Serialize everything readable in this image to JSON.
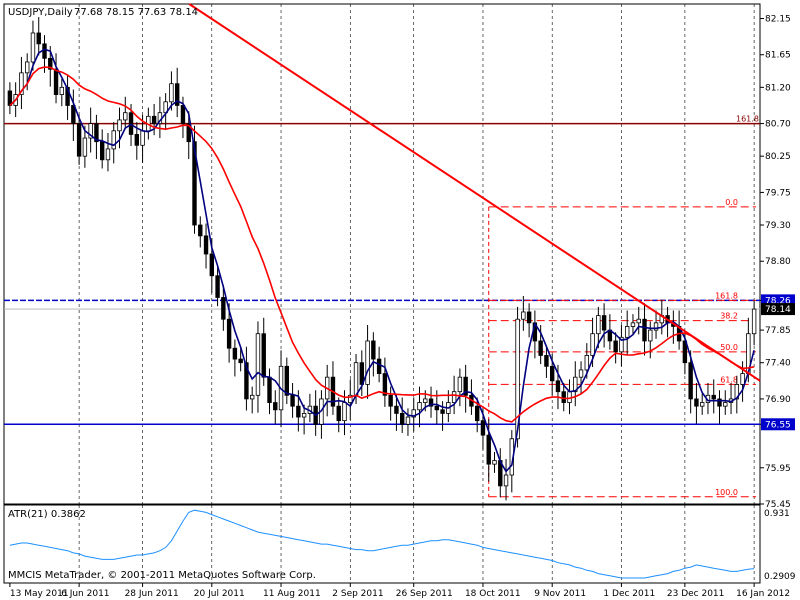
{
  "header": {
    "symbol_label": "USDJPY,Daily",
    "ohlc": "77.68 78.15 77.63 78.14"
  },
  "indicator": {
    "label": "ATR(21) 0.3862",
    "top_value": "0.931",
    "bottom_value": "0.2909"
  },
  "copyright": "MMCIS MetaTrader, © 2001-2011 MetaQuotes Software Corp.",
  "colors": {
    "background": "#ffffff",
    "grid": "#000000",
    "candle_up": "#ffffff",
    "candle_down": "#000000",
    "fast_ma": "#000080",
    "slow_ma": "#ff0000",
    "trendline": "#ff0000",
    "horizontal_level": "#0000cc",
    "resistance_brown": "#8b0000",
    "fib": "#ff0000",
    "atr_line": "#1e90ff",
    "price_tag_bg": "#0000cc",
    "price_tag_current": "#000000"
  },
  "chart_data": {
    "type": "candlestick",
    "symbol": "USDJPY",
    "timeframe": "Daily",
    "ylim": [
      75.45,
      82.35
    ],
    "y_ticks": [
      "82.15",
      "81.65",
      "81.20",
      "80.70",
      "80.25",
      "79.75",
      "79.30",
      "78.80",
      "78.26",
      "77.85",
      "77.40",
      "76.90",
      "76.55",
      "75.95",
      "75.45"
    ],
    "x_labels": [
      "13 May 2011",
      "6 Jun 2011",
      "28 Jun 2011",
      "20 Jul 2011",
      "11 Aug 2011",
      "2 Sep 2011",
      "26 Sep 2011",
      "18 Oct 2011",
      "9 Nov 2011",
      "1 Dec 2011",
      "23 Dec 2011",
      "16 Jan 2012"
    ],
    "price_tags": [
      {
        "value": "78.26",
        "style": "level"
      },
      {
        "value": "78.14",
        "style": "current"
      },
      {
        "value": "76.55",
        "style": "level"
      }
    ],
    "horizontal_lines": [
      {
        "value": 80.7,
        "label": "161.8",
        "style": "resistance_brown"
      },
      {
        "value": 78.26,
        "style": "horizontal_level",
        "dashed": true
      },
      {
        "value": 76.55,
        "style": "horizontal_level"
      }
    ],
    "fib_levels": [
      {
        "label": "0.0",
        "value": 79.55
      },
      {
        "label": "161.8",
        "value": 78.26
      },
      {
        "label": "38.2",
        "value": 77.98
      },
      {
        "label": "50.0",
        "value": 77.55
      },
      {
        "label": "61.8",
        "value": 77.1
      },
      {
        "label": "100.0",
        "value": 75.55
      }
    ],
    "trendline": [
      {
        "x": 0.245,
        "y": 82.35
      },
      {
        "x": 1.0,
        "y": 77.15
      }
    ],
    "atr_range": [
      0.2909,
      0.931
    ],
    "series": {
      "close": [
        80.95,
        81.1,
        81.4,
        81.55,
        81.95,
        81.8,
        81.6,
        81.45,
        81.1,
        81.2,
        80.95,
        80.7,
        80.25,
        80.5,
        80.7,
        80.45,
        80.2,
        80.35,
        80.6,
        80.75,
        80.85,
        80.55,
        80.4,
        80.6,
        80.8,
        80.7,
        80.85,
        81.0,
        81.25,
        80.95,
        80.7,
        80.45,
        79.3,
        79.15,
        78.9,
        78.6,
        78.3,
        78.0,
        77.6,
        77.45,
        77.4,
        76.9,
        76.95,
        77.8,
        77.2,
        76.85,
        76.75,
        77.35,
        76.95,
        76.8,
        76.65,
        76.7,
        76.8,
        76.55,
        76.9,
        77.2,
        76.8,
        76.6,
        76.85,
        76.95,
        77.4,
        77.1,
        77.7,
        77.45,
        77.25,
        76.95,
        76.8,
        76.7,
        76.55,
        76.65,
        76.75,
        76.85,
        76.9,
        76.8,
        76.75,
        76.7,
        76.85,
        77.0,
        77.2,
        76.95,
        76.8,
        76.6,
        76.4,
        76.0,
        76.05,
        75.7,
        75.85,
        76.35,
        78.0,
        78.1,
        77.95,
        77.7,
        77.5,
        77.35,
        77.15,
        77.0,
        76.85,
        77.0,
        77.2,
        77.3,
        77.5,
        77.8,
        78.05,
        77.85,
        77.7,
        77.55,
        77.75,
        77.9,
        77.95,
        78.0,
        77.7,
        77.85,
        77.95,
        78.05,
        77.95,
        77.9,
        77.7,
        77.4,
        76.9,
        76.8,
        76.85,
        76.95,
        76.9,
        76.8,
        76.85,
        76.9,
        77.1,
        77.25,
        77.8,
        78.14
      ],
      "atr": [
        0.6,
        0.61,
        0.62,
        0.62,
        0.61,
        0.6,
        0.59,
        0.58,
        0.57,
        0.56,
        0.55,
        0.53,
        0.52,
        0.5,
        0.49,
        0.48,
        0.47,
        0.47,
        0.47,
        0.48,
        0.49,
        0.5,
        0.51,
        0.51,
        0.52,
        0.53,
        0.55,
        0.58,
        0.64,
        0.73,
        0.82,
        0.9,
        0.92,
        0.91,
        0.9,
        0.88,
        0.86,
        0.84,
        0.82,
        0.8,
        0.78,
        0.76,
        0.74,
        0.72,
        0.71,
        0.7,
        0.69,
        0.68,
        0.67,
        0.66,
        0.65,
        0.64,
        0.63,
        0.62,
        0.61,
        0.61,
        0.6,
        0.59,
        0.58,
        0.57,
        0.56,
        0.56,
        0.55,
        0.55,
        0.56,
        0.57,
        0.58,
        0.59,
        0.6,
        0.6,
        0.61,
        0.62,
        0.63,
        0.64,
        0.64,
        0.65,
        0.65,
        0.64,
        0.63,
        0.62,
        0.61,
        0.6,
        0.58,
        0.57,
        0.56,
        0.55,
        0.54,
        0.53,
        0.52,
        0.51,
        0.5,
        0.49,
        0.48,
        0.47,
        0.46,
        0.44,
        0.43,
        0.42,
        0.4,
        0.39,
        0.37,
        0.36,
        0.34,
        0.33,
        0.32,
        0.31,
        0.3,
        0.3,
        0.3,
        0.3,
        0.3,
        0.31,
        0.32,
        0.33,
        0.34,
        0.36,
        0.37,
        0.39,
        0.4,
        0.42,
        0.41,
        0.4,
        0.39,
        0.38,
        0.37,
        0.36,
        0.36,
        0.37,
        0.38,
        0.3862
      ]
    }
  }
}
